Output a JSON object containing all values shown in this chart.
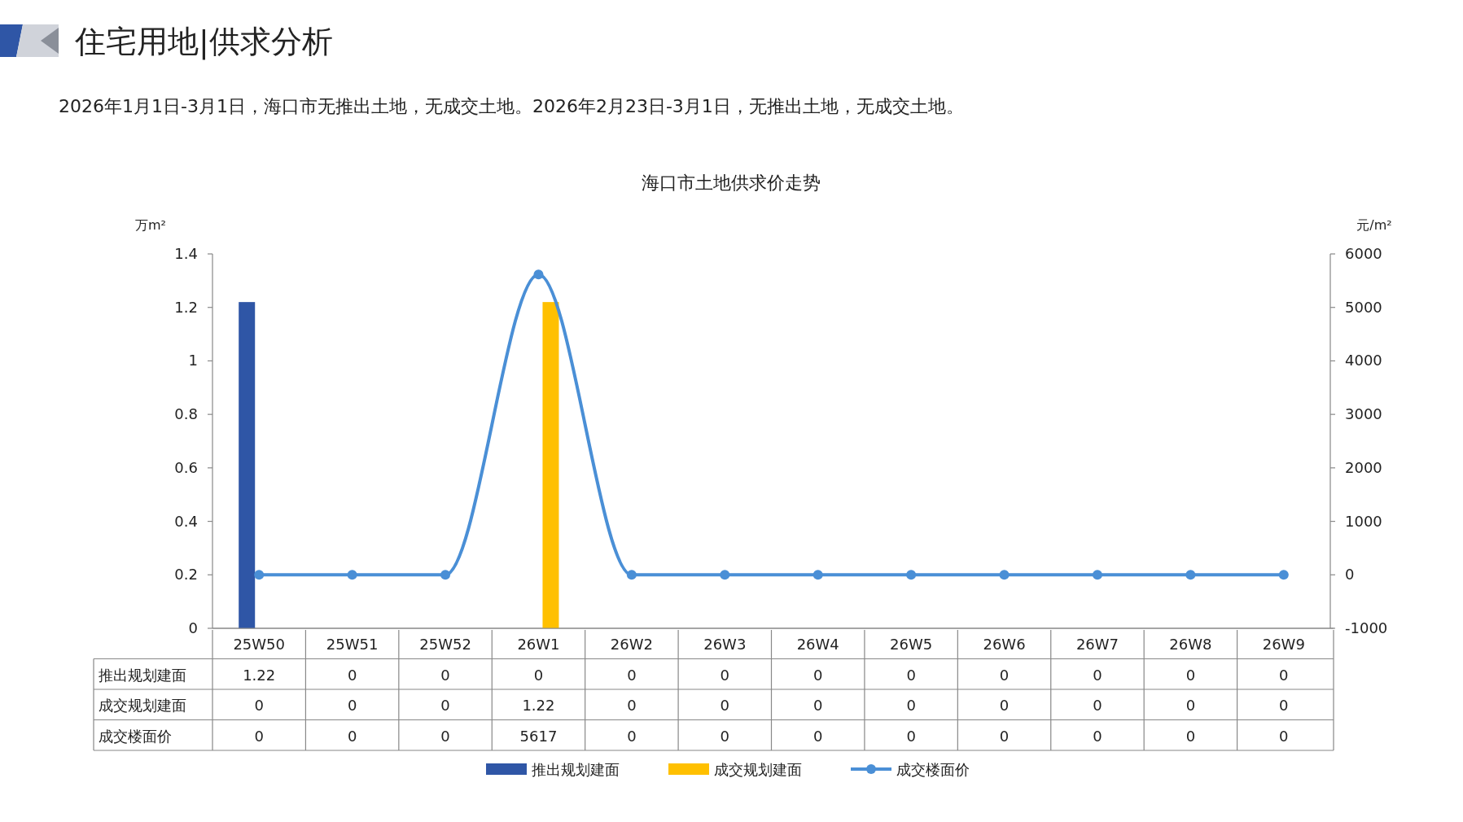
{
  "chart_data": {
    "type": "bar",
    "title": "海口市土地供求价走势",
    "subtitle": "住宅用地|供求分析",
    "annotations": [
      "2026年1月1日-3月1日，海口市无推出土地，无成交土地。2026年2月23日-3月1日，无推出土地，无成交土地。"
    ],
    "ylabel": "万m²",
    "y2label": "元/m²",
    "categories": [
      "25W50",
      "25W51",
      "25W52",
      "26W1",
      "26W2",
      "26W3",
      "26W4",
      "26W5",
      "26W6",
      "26W7",
      "26W8",
      "26W9"
    ],
    "series": [
      {
        "name": "推出规划建面",
        "color": "#2f56a6",
        "values": [
          1.22,
          0,
          0,
          0,
          0,
          0,
          0,
          0,
          0,
          0,
          0,
          0
        ]
      },
      {
        "name": "成交规划建面",
        "color": "#ffc000",
        "values": [
          0,
          0,
          0,
          1.22,
          0,
          0,
          0,
          0,
          0,
          0,
          0,
          0
        ]
      },
      {
        "name": "成交楼面价",
        "type": "line",
        "axis": "y2",
        "color": "#4a8fd6",
        "marker": "circle",
        "values": [
          0,
          0,
          0,
          5617,
          0,
          0,
          0,
          0,
          0,
          0,
          0,
          0
        ]
      }
    ],
    "ylim": [
      0,
      1.4
    ],
    "yticks": [
      0,
      0.2,
      0.4,
      0.6,
      0.8,
      1,
      1.2,
      1.4
    ],
    "y2lim": [
      -1000,
      6000
    ],
    "y2ticks": [
      -1000,
      0,
      1000,
      2000,
      3000,
      4000,
      5000,
      6000
    ],
    "grid": false,
    "legend": "bottom",
    "data_labels": true
  }
}
